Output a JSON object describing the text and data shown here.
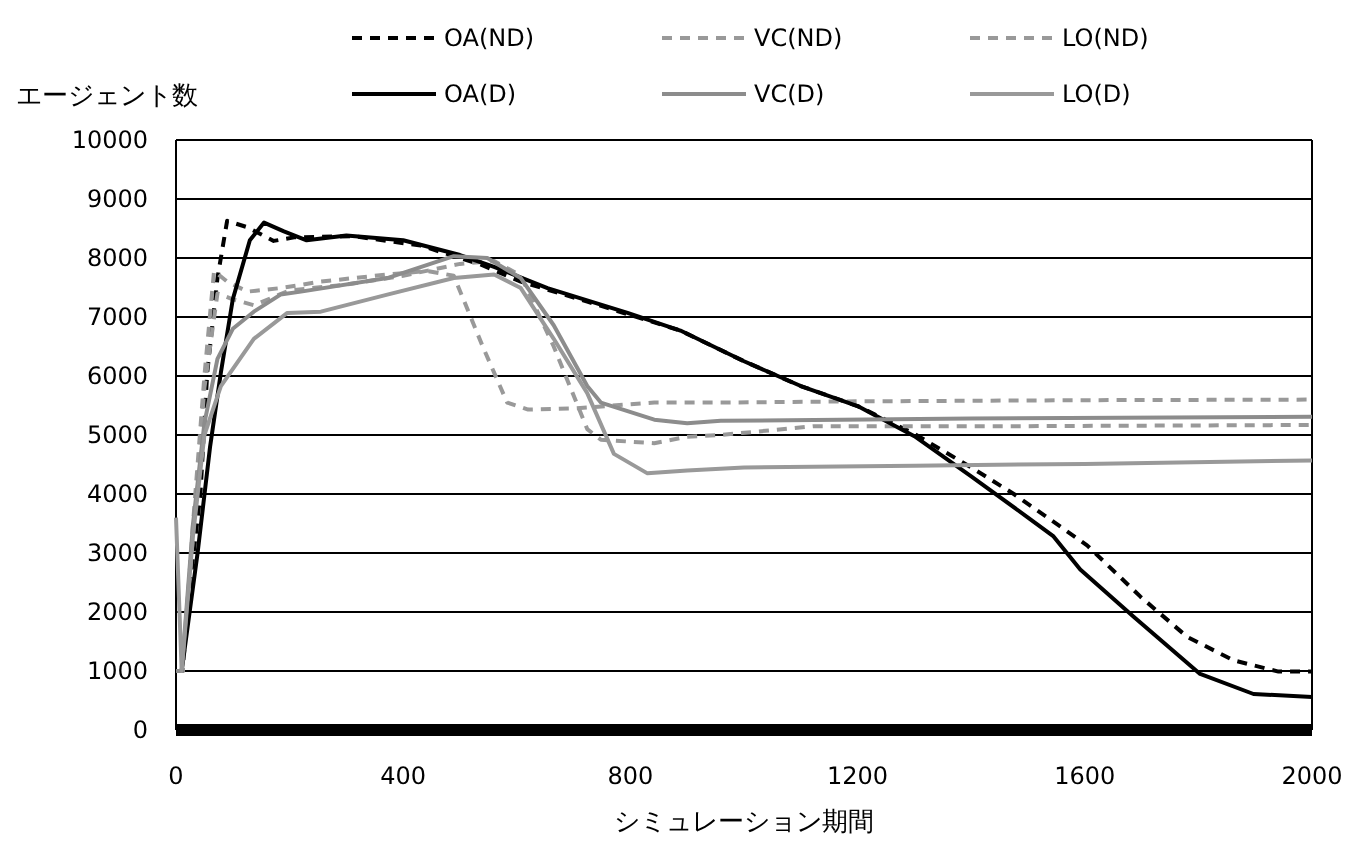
{
  "chart_data": {
    "type": "line",
    "xlabel": "シミュレーション期間",
    "ylabel": "エージェント数",
    "xlim": [
      0,
      2000
    ],
    "ylim": [
      0,
      10000
    ],
    "xticks": [
      0,
      400,
      800,
      1200,
      1600,
      2000
    ],
    "yticks": [
      0,
      1000,
      2000,
      3000,
      4000,
      5000,
      6000,
      7000,
      8000,
      9000,
      10000
    ],
    "grid": "y",
    "legend": "top",
    "series": [
      {
        "name": "OA(ND)",
        "color": "#000000",
        "line_style": "dashed",
        "x": [
          0,
          10,
          25,
          43,
          55,
          73,
          90,
          126,
          172,
          208,
          313,
          431,
          536,
          607,
          724,
          888,
          1000,
          1100,
          1200,
          1300,
          1400,
          1475,
          1604,
          1698,
          1780,
          1862,
          1941,
          2000
        ],
        "values": [
          1000,
          1000,
          2500,
          4000,
          6060,
          7660,
          8630,
          8520,
          8290,
          8350,
          8370,
          8210,
          7890,
          7600,
          7260,
          6770,
          6250,
          5830,
          5490,
          5020,
          4450,
          4000,
          3130,
          2260,
          1580,
          1180,
          990,
          990
        ]
      },
      {
        "name": "VC(ND)",
        "color": "#999999",
        "line_style": "dashed",
        "x": [
          0,
          12,
          30,
          50,
          67,
          90,
          126,
          184,
          255,
          372,
          442,
          489,
          540,
          583,
          620,
          700,
          842,
          959,
          1200,
          1600,
          2000
        ],
        "values": [
          1000,
          1000,
          3500,
          6000,
          7780,
          7600,
          7430,
          7490,
          7600,
          7720,
          7780,
          7700,
          6500,
          5550,
          5430,
          5450,
          5550,
          5550,
          5570,
          5590,
          5600
        ]
      },
      {
        "name": "LO(ND)",
        "color": "#999999",
        "line_style": "dashed",
        "x": [
          0,
          12,
          30,
          50,
          73,
          100,
          137,
          200,
          300,
          400,
          500,
          560,
          607,
          665,
          724,
          748,
          842,
          900,
          959,
          1124,
          1500,
          2000
        ],
        "values": [
          1000,
          1000,
          3300,
          5800,
          7400,
          7300,
          7200,
          7450,
          7550,
          7700,
          7900,
          7950,
          7700,
          6500,
          5100,
          4920,
          4860,
          4970,
          5000,
          5150,
          5150,
          5170
        ]
      },
      {
        "name": "OA(D)",
        "color": "#000000",
        "line_style": "solid",
        "x": [
          0,
          10,
          38,
          60,
          79,
          100,
          130,
          155,
          190,
          230,
          300,
          400,
          500,
          560,
          654,
          795,
          888,
          1000,
          1100,
          1200,
          1300,
          1400,
          1500,
          1545,
          1592,
          1686,
          1803,
          1897,
          2000
        ],
        "values": [
          1000,
          1000,
          3000,
          4800,
          6060,
          7300,
          8300,
          8600,
          8450,
          8300,
          8380,
          8300,
          8050,
          7850,
          7490,
          7070,
          6770,
          6250,
          5830,
          5490,
          4980,
          4300,
          3600,
          3280,
          2720,
          1920,
          950,
          610,
          560
        ]
      },
      {
        "name": "VC(D)",
        "color": "#8c8c8c",
        "line_style": "solid",
        "x": [
          0,
          10,
          30,
          50,
          73,
          100,
          137,
          184,
          220,
          372,
          489,
          548,
          607,
          665,
          724,
          748,
          842,
          900,
          959,
          1400,
          2000
        ],
        "values": [
          1000,
          1000,
          3500,
          5200,
          6290,
          6800,
          7090,
          7380,
          7430,
          7660,
          8030,
          8000,
          7660,
          6860,
          5830,
          5550,
          5260,
          5200,
          5240,
          5280,
          5310
        ]
      },
      {
        "name": "LO(D)",
        "color": "#999999",
        "line_style": "solid",
        "x": [
          0,
          10,
          30,
          50,
          79,
          137,
          196,
          255,
          372,
          489,
          560,
          607,
          665,
          724,
          771,
          830,
          900,
          1000,
          1300,
          1600,
          2000
        ],
        "values": [
          3600,
          1000,
          3300,
          5000,
          5830,
          6630,
          7070,
          7090,
          7380,
          7660,
          7720,
          7490,
          6630,
          5710,
          4680,
          4350,
          4400,
          4450,
          4480,
          4510,
          4570
        ]
      }
    ]
  }
}
